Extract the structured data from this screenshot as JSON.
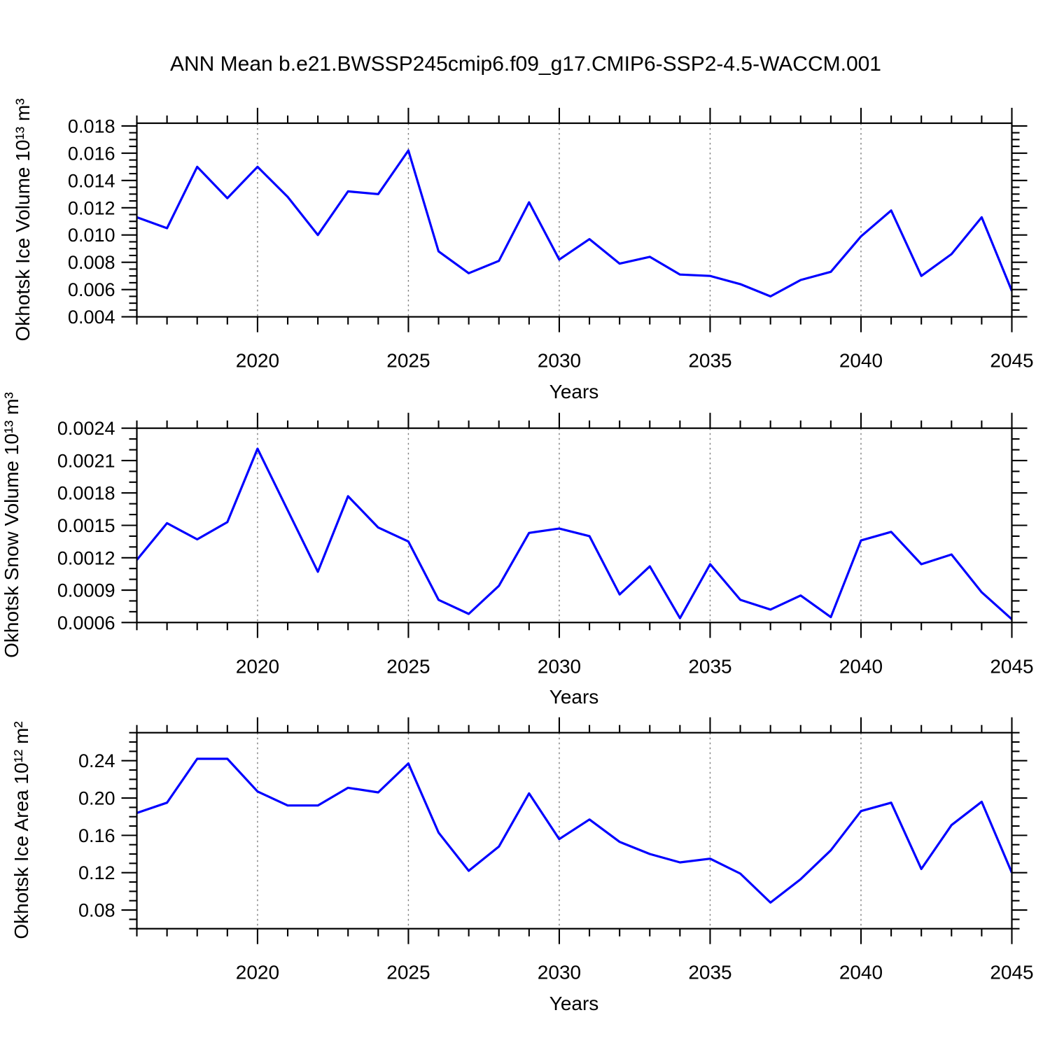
{
  "title": "ANN Mean b.e21.BWSSP245cmip6.f09_g17.CMIP6-SSP2-4.5-WACCM.001",
  "chart_data": [
    {
      "type": "line",
      "panel": "top",
      "ylabel": "Okhotsk Ice Volume 10¹³ m³",
      "xlabel": "Years",
      "line_color": "#0000FF",
      "grid_color": "#7F7F7F",
      "legend": "none",
      "x": [
        2016,
        2017,
        2018,
        2019,
        2020,
        2021,
        2022,
        2023,
        2024,
        2025,
        2026,
        2027,
        2028,
        2029,
        2030,
        2031,
        2032,
        2033,
        2034,
        2035,
        2036,
        2037,
        2038,
        2039,
        2040,
        2041,
        2042,
        2043,
        2044,
        2045
      ],
      "values": [
        0.0113,
        0.0105,
        0.015,
        0.0127,
        0.015,
        0.0128,
        0.01,
        0.0132,
        0.013,
        0.0162,
        0.0088,
        0.0072,
        0.0081,
        0.0124,
        0.0082,
        0.0097,
        0.0079,
        0.0084,
        0.0071,
        0.007,
        0.0064,
        0.0055,
        0.0067,
        0.0073,
        0.0099,
        0.0118,
        0.007,
        0.0086,
        0.0113,
        0.0059
      ],
      "xlim": [
        2016,
        2045
      ],
      "ylim": [
        0.004,
        0.0182
      ],
      "yticks": [
        0.004,
        0.006,
        0.008,
        0.01,
        0.012,
        0.014,
        0.016,
        0.018
      ],
      "ytick_labels": [
        "0.004",
        "0.006",
        "0.008",
        "0.010",
        "0.012",
        "0.014",
        "0.016",
        "0.018"
      ],
      "yminor_step": 0.0005,
      "xticks": [
        2020,
        2025,
        2030,
        2035,
        2040,
        2045
      ],
      "xtick_labels": [
        "2020",
        "2025",
        "2030",
        "2035",
        "2040",
        "2045"
      ],
      "grid_x": [
        2020,
        2025,
        2030,
        2035,
        2040
      ]
    },
    {
      "type": "line",
      "panel": "middle",
      "ylabel": "Okhotsk Snow Volume 10¹³ m³",
      "xlabel": "Years",
      "line_color": "#0000FF",
      "grid_color": "#7F7F7F",
      "legend": "none",
      "x": [
        2016,
        2017,
        2018,
        2019,
        2020,
        2021,
        2022,
        2023,
        2024,
        2025,
        2026,
        2027,
        2028,
        2029,
        2030,
        2031,
        2032,
        2033,
        2034,
        2035,
        2036,
        2037,
        2038,
        2039,
        2040,
        2041,
        2042,
        2043,
        2044,
        2045
      ],
      "values": [
        0.00118,
        0.00152,
        0.00137,
        0.00153,
        0.00221,
        0.00164,
        0.00107,
        0.00177,
        0.00148,
        0.00135,
        0.00081,
        0.00068,
        0.00094,
        0.00143,
        0.00147,
        0.0014,
        0.00086,
        0.00112,
        0.00064,
        0.00114,
        0.00081,
        0.00072,
        0.00085,
        0.00065,
        0.00136,
        0.00144,
        0.00114,
        0.00123,
        0.00088,
        0.00063
      ],
      "xlim": [
        2016,
        2045
      ],
      "ylim": [
        0.0006,
        0.0024
      ],
      "yticks": [
        0.0006,
        0.0009,
        0.0012,
        0.0015,
        0.0018,
        0.0021,
        0.0024
      ],
      "ytick_labels": [
        "0.0006",
        "0.0009",
        "0.0012",
        "0.0015",
        "0.0018",
        "0.0021",
        "0.0024"
      ],
      "yminor_step": 0.0001,
      "xticks": [
        2020,
        2025,
        2030,
        2035,
        2040,
        2045
      ],
      "xtick_labels": [
        "2020",
        "2025",
        "2030",
        "2035",
        "2040",
        "2045"
      ],
      "grid_x": [
        2020,
        2025,
        2030,
        2035,
        2040
      ]
    },
    {
      "type": "line",
      "panel": "bottom",
      "ylabel": "Okhotsk Ice Area 10¹² m²",
      "xlabel": "Years",
      "line_color": "#0000FF",
      "grid_color": "#7F7F7F",
      "legend": "none",
      "x": [
        2016,
        2017,
        2018,
        2019,
        2020,
        2021,
        2022,
        2023,
        2024,
        2025,
        2026,
        2027,
        2028,
        2029,
        2030,
        2031,
        2032,
        2033,
        2034,
        2035,
        2036,
        2037,
        2038,
        2039,
        2040,
        2041,
        2042,
        2043,
        2044,
        2045
      ],
      "values": [
        0.184,
        0.195,
        0.242,
        0.242,
        0.207,
        0.192,
        0.192,
        0.211,
        0.206,
        0.237,
        0.163,
        0.122,
        0.148,
        0.205,
        0.156,
        0.177,
        0.153,
        0.14,
        0.131,
        0.135,
        0.119,
        0.088,
        0.113,
        0.144,
        0.186,
        0.195,
        0.124,
        0.171,
        0.196,
        0.12
      ],
      "xlim": [
        2016,
        2045
      ],
      "ylim": [
        0.06,
        0.27
      ],
      "yticks": [
        0.08,
        0.12,
        0.16,
        0.2,
        0.24
      ],
      "ytick_labels": [
        "0.08",
        "0.12",
        "0.16",
        "0.20",
        "0.24"
      ],
      "yminor_step": 0.01,
      "xticks": [
        2020,
        2025,
        2030,
        2035,
        2040,
        2045
      ],
      "xtick_labels": [
        "2020",
        "2025",
        "2030",
        "2035",
        "2040",
        "2045"
      ],
      "grid_x": [
        2020,
        2025,
        2030,
        2035,
        2040
      ]
    }
  ]
}
